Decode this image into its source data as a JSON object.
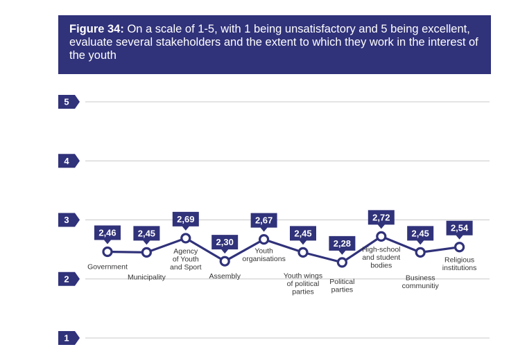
{
  "title": {
    "prefix": "Figure 34:",
    "text": "On a scale of 1-5, with 1 being unsatisfactory and 5 being excellent, evaluate several stakeholders and the extent to which they work in the interest of the youth"
  },
  "colors": {
    "navy": "#30327a",
    "grid": "#c8c8c8",
    "text": "#333333"
  },
  "chart_data": {
    "type": "line",
    "title": "On a scale of 1-5, with 1 being unsatisfactory and 5 being excellent, evaluate several stakeholders and the extent to which they work in the interest of the youth",
    "categories": [
      [
        "Government"
      ],
      [
        "Municipality"
      ],
      [
        "Agency",
        "of Youth",
        "and Sport"
      ],
      [
        "Assembly"
      ],
      [
        "Youth",
        "organisations"
      ],
      [
        "Youth wings",
        "of political",
        "parties"
      ],
      [
        "Political",
        "parties"
      ],
      [
        "High-school",
        "and student",
        "bodies"
      ],
      [
        "Business",
        "communitiy"
      ],
      [
        "Religious",
        "institutions"
      ]
    ],
    "values": [
      2.46,
      2.45,
      2.69,
      2.3,
      2.67,
      2.45,
      2.28,
      2.72,
      2.45,
      2.54
    ],
    "value_labels": [
      "2,46",
      "2,45",
      "2,69",
      "2,30",
      "2,67",
      "2,45",
      "2,28",
      "2,72",
      "2,45",
      "2,54"
    ],
    "label_side": [
      "above",
      "above",
      "above",
      "above",
      "above",
      "above",
      "above",
      "above",
      "above",
      "above"
    ],
    "category_side": [
      "below",
      "below",
      "above",
      "below",
      "above",
      "below",
      "below",
      "above",
      "below",
      "above"
    ],
    "yticks": [
      "1",
      "2",
      "3",
      "4",
      "5"
    ],
    "ylim": [
      1,
      5
    ],
    "grid": true
  }
}
